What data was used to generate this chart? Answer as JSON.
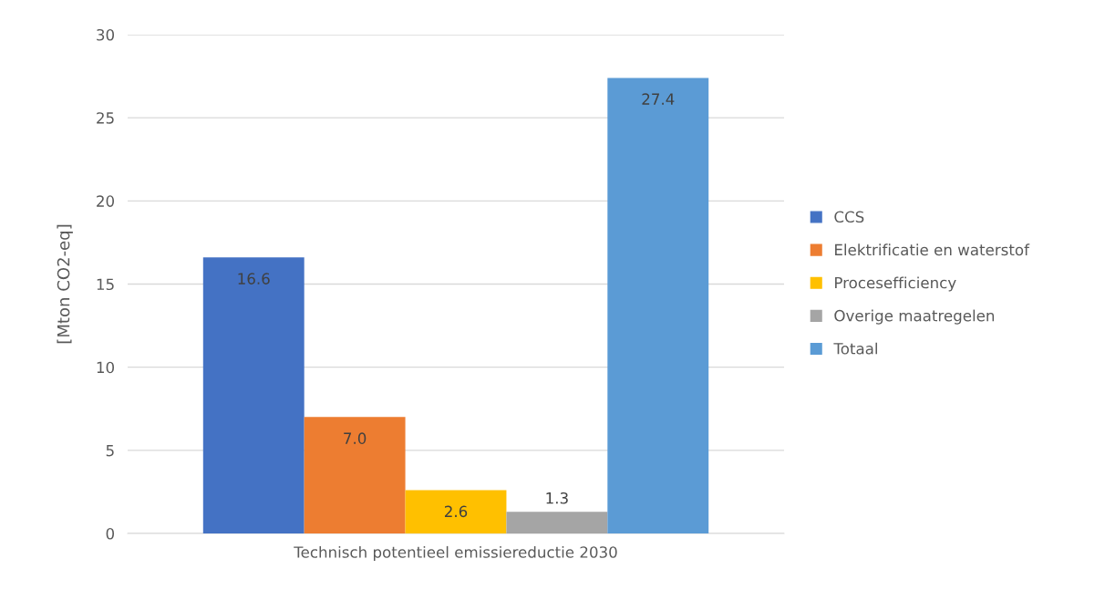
{
  "chart_data": {
    "type": "bar",
    "ylabel": "[Mton CO2-eq]",
    "categories": [
      "Technisch potentieel emissiereductie 2030"
    ],
    "series": [
      {
        "name": "CCS",
        "color": "#4472c4",
        "values": [
          16.6
        ],
        "value_labels": [
          "16.6"
        ]
      },
      {
        "name": "Elektrificatie en waterstof",
        "color": "#ed7d31",
        "values": [
          7.0
        ],
        "value_labels": [
          "7.0"
        ]
      },
      {
        "name": "Procesefficiency",
        "color": "#ffc000",
        "values": [
          2.6
        ],
        "value_labels": [
          "2.6"
        ]
      },
      {
        "name": "Overige maatregelen",
        "color": "#a5a5a5",
        "values": [
          1.3
        ],
        "value_labels": [
          "1.3"
        ]
      },
      {
        "name": "Totaal",
        "color": "#5b9bd5",
        "values": [
          27.4
        ],
        "value_labels": [
          "27.4"
        ]
      }
    ],
    "ylim": [
      0,
      30
    ],
    "yticks": [
      0,
      5,
      10,
      15,
      20,
      25,
      30
    ],
    "grid": "y",
    "legend": "right"
  }
}
